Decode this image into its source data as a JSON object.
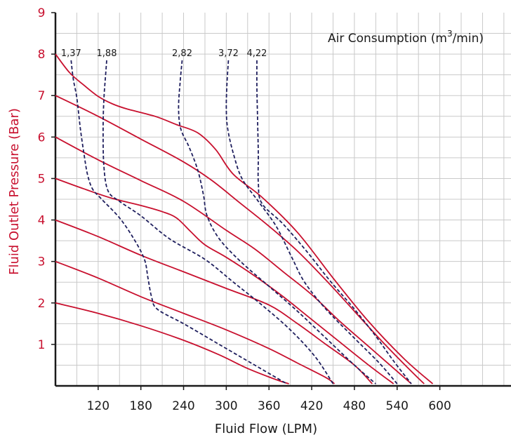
{
  "chart_data": {
    "type": "line",
    "xlabel": "Fluid Flow (LPM)",
    "ylabel": "Fluid Outlet Pressure (Bar)",
    "xlim": [
      60,
      700
    ],
    "ylim": [
      0,
      9
    ],
    "x_ticks": [
      "120",
      "180",
      "240",
      "300",
      "360",
      "420",
      "480",
      "540",
      "600"
    ],
    "y_ticks": [
      "1",
      "2",
      "3",
      "4",
      "5",
      "6",
      "7",
      "8",
      "9"
    ],
    "grid": true,
    "legend": {
      "title": "Air Consumption (m",
      "sup": "3",
      "title_suffix": "/min)"
    },
    "colors": {
      "pressure_curve": "#c8102e",
      "air_curve": "#1f1f5e",
      "axis": "#1a1a1a",
      "grid": "#c9c9c9",
      "ylabel": "#c8102e"
    },
    "pressure_series": [
      {
        "values": [
          [
            60,
            8.0
          ],
          [
            80,
            7.55
          ],
          [
            100,
            7.25
          ],
          [
            120,
            6.98
          ],
          [
            140,
            6.8
          ],
          [
            160,
            6.68
          ],
          [
            200,
            6.5
          ],
          [
            230,
            6.3
          ],
          [
            260,
            6.1
          ],
          [
            285,
            5.7
          ],
          [
            310,
            5.1
          ],
          [
            350,
            4.55
          ],
          [
            400,
            3.7
          ],
          [
            450,
            2.6
          ],
          [
            500,
            1.55
          ],
          [
            550,
            0.65
          ],
          [
            590,
            0.05
          ]
        ]
      },
      {
        "values": [
          [
            60,
            7.0
          ],
          [
            120,
            6.5
          ],
          [
            180,
            5.95
          ],
          [
            240,
            5.4
          ],
          [
            280,
            4.95
          ],
          [
            320,
            4.4
          ],
          [
            360,
            3.85
          ],
          [
            400,
            3.25
          ],
          [
            440,
            2.55
          ],
          [
            480,
            1.8
          ],
          [
            520,
            1.05
          ],
          [
            560,
            0.35
          ],
          [
            578,
            0.05
          ]
        ]
      },
      {
        "values": [
          [
            60,
            6.0
          ],
          [
            120,
            5.45
          ],
          [
            180,
            4.95
          ],
          [
            240,
            4.45
          ],
          [
            300,
            3.75
          ],
          [
            340,
            3.3
          ],
          [
            380,
            2.75
          ],
          [
            420,
            2.2
          ],
          [
            460,
            1.55
          ],
          [
            500,
            0.95
          ],
          [
            540,
            0.35
          ],
          [
            560,
            0.05
          ]
        ]
      },
      {
        "values": [
          [
            60,
            5.0
          ],
          [
            100,
            4.75
          ],
          [
            140,
            4.52
          ],
          [
            180,
            4.35
          ],
          [
            210,
            4.2
          ],
          [
            230,
            4.05
          ],
          [
            250,
            3.72
          ],
          [
            270,
            3.4
          ],
          [
            300,
            3.1
          ],
          [
            340,
            2.65
          ],
          [
            380,
            2.15
          ],
          [
            420,
            1.6
          ],
          [
            460,
            1.05
          ],
          [
            500,
            0.5
          ],
          [
            535,
            0.05
          ]
        ]
      },
      {
        "values": [
          [
            60,
            4.0
          ],
          [
            120,
            3.6
          ],
          [
            180,
            3.15
          ],
          [
            240,
            2.75
          ],
          [
            300,
            2.35
          ],
          [
            360,
            1.95
          ],
          [
            400,
            1.5
          ],
          [
            440,
            1.0
          ],
          [
            480,
            0.5
          ],
          [
            505,
            0.05
          ]
        ]
      },
      {
        "values": [
          [
            60,
            3.0
          ],
          [
            120,
            2.6
          ],
          [
            180,
            2.15
          ],
          [
            240,
            1.75
          ],
          [
            300,
            1.35
          ],
          [
            360,
            0.9
          ],
          [
            400,
            0.55
          ],
          [
            440,
            0.2
          ],
          [
            452,
            0.05
          ]
        ]
      },
      {
        "values": [
          [
            60,
            2.0
          ],
          [
            120,
            1.75
          ],
          [
            180,
            1.45
          ],
          [
            240,
            1.1
          ],
          [
            290,
            0.75
          ],
          [
            330,
            0.42
          ],
          [
            370,
            0.15
          ],
          [
            388,
            0.05
          ]
        ]
      }
    ],
    "air_series": [
      {
        "name": "1,37",
        "values": [
          [
            82,
            7.85
          ],
          [
            85,
            7.4
          ],
          [
            90,
            6.95
          ],
          [
            95,
            6.2
          ],
          [
            100,
            5.6
          ],
          [
            105,
            5.1
          ],
          [
            112,
            4.75
          ],
          [
            125,
            4.5
          ],
          [
            150,
            4.05
          ],
          [
            170,
            3.55
          ],
          [
            185,
            3.05
          ],
          [
            190,
            2.6
          ],
          [
            195,
            2.15
          ],
          [
            203,
            1.85
          ],
          [
            240,
            1.5
          ],
          [
            290,
            1.0
          ],
          [
            340,
            0.5
          ],
          [
            385,
            0.05
          ]
        ]
      },
      {
        "name": "1,88",
        "values": [
          [
            132,
            7.85
          ],
          [
            130,
            7.4
          ],
          [
            128,
            6.9
          ],
          [
            127,
            6.2
          ],
          [
            128,
            5.3
          ],
          [
            134,
            4.7
          ],
          [
            150,
            4.45
          ],
          [
            180,
            4.1
          ],
          [
            220,
            3.55
          ],
          [
            270,
            3.05
          ],
          [
            310,
            2.5
          ],
          [
            350,
            1.95
          ],
          [
            390,
            1.35
          ],
          [
            425,
            0.7
          ],
          [
            450,
            0.05
          ]
        ]
      },
      {
        "name": "2,82",
        "values": [
          [
            238,
            7.85
          ],
          [
            235,
            7.3
          ],
          [
            233,
            6.7
          ],
          [
            236,
            6.2
          ],
          [
            248,
            5.75
          ],
          [
            260,
            5.2
          ],
          [
            268,
            4.6
          ],
          [
            273,
            4.1
          ],
          [
            290,
            3.55
          ],
          [
            320,
            3.0
          ],
          [
            360,
            2.4
          ],
          [
            400,
            1.8
          ],
          [
            440,
            1.15
          ],
          [
            480,
            0.5
          ],
          [
            510,
            0.05
          ]
        ]
      },
      {
        "name": "3,72",
        "values": [
          [
            303,
            7.85
          ],
          [
            301,
            7.3
          ],
          [
            300,
            6.7
          ],
          [
            302,
            6.2
          ],
          [
            310,
            5.6
          ],
          [
            322,
            5.0
          ],
          [
            345,
            4.45
          ],
          [
            370,
            3.85
          ],
          [
            392,
            3.1
          ],
          [
            410,
            2.5
          ],
          [
            440,
            1.85
          ],
          [
            480,
            1.15
          ],
          [
            515,
            0.55
          ],
          [
            540,
            0.05
          ]
        ]
      },
      {
        "name": "4,22",
        "values": [
          [
            343,
            7.85
          ],
          [
            343,
            7.2
          ],
          [
            344,
            6.4
          ],
          [
            345,
            5.6
          ],
          [
            345,
            4.9
          ],
          [
            350,
            4.4
          ],
          [
            380,
            3.9
          ],
          [
            415,
            3.2
          ],
          [
            445,
            2.55
          ],
          [
            480,
            1.85
          ],
          [
            510,
            1.2
          ],
          [
            535,
            0.6
          ],
          [
            560,
            0.05
          ]
        ]
      }
    ]
  }
}
